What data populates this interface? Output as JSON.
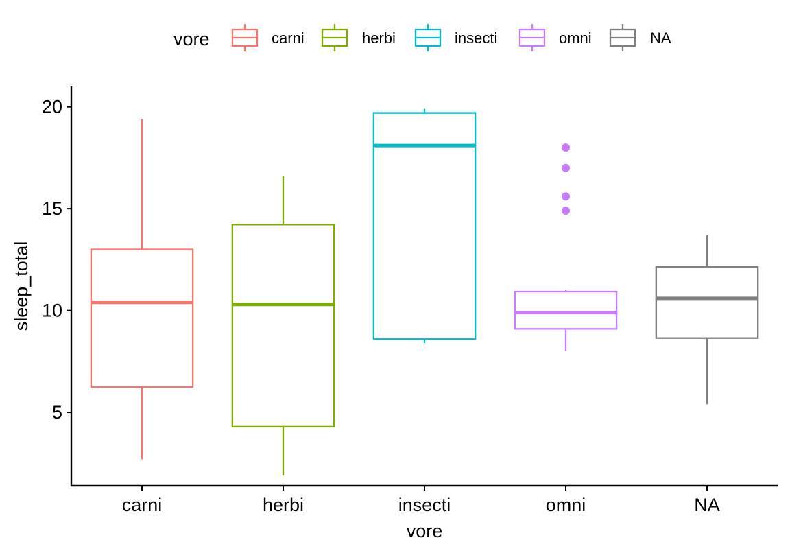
{
  "chart_data": {
    "type": "boxplot",
    "xlabel": "vore",
    "ylabel": "sleep_total",
    "ylim": [
      1.4,
      21.0
    ],
    "yticks": [
      5,
      10,
      15,
      20
    ],
    "grid": false,
    "legend": {
      "title": "vore",
      "position": "top",
      "entries": [
        "carni",
        "herbi",
        "insecti",
        "omni",
        "NA"
      ]
    },
    "categories": [
      "carni",
      "herbi",
      "insecti",
      "omni",
      "NA"
    ],
    "colors": {
      "carni": "#F8766D",
      "herbi": "#7CAE00",
      "insecti": "#00BFC4",
      "omni": "#C77CFF",
      "NA": "#7F7F7F"
    },
    "boxes": [
      {
        "category": "carni",
        "lower_whisker": 2.7,
        "q1": 6.25,
        "median": 10.4,
        "q3": 13.0,
        "upper_whisker": 19.4,
        "outliers": []
      },
      {
        "category": "herbi",
        "lower_whisker": 1.9,
        "q1": 4.3,
        "median": 10.3,
        "q3": 14.22,
        "upper_whisker": 16.6,
        "outliers": []
      },
      {
        "category": "insecti",
        "lower_whisker": 8.4,
        "q1": 8.6,
        "median": 18.1,
        "q3": 19.7,
        "upper_whisker": 19.9,
        "outliers": []
      },
      {
        "category": "omni",
        "lower_whisker": 8.0,
        "q1": 9.1,
        "median": 9.9,
        "q3": 10.93,
        "upper_whisker": 11.0,
        "outliers": [
          18.0,
          17.0,
          15.6,
          14.9
        ]
      },
      {
        "category": "NA",
        "lower_whisker": 5.4,
        "q1": 8.65,
        "median": 10.6,
        "q3": 12.15,
        "upper_whisker": 13.7,
        "outliers": []
      }
    ]
  }
}
